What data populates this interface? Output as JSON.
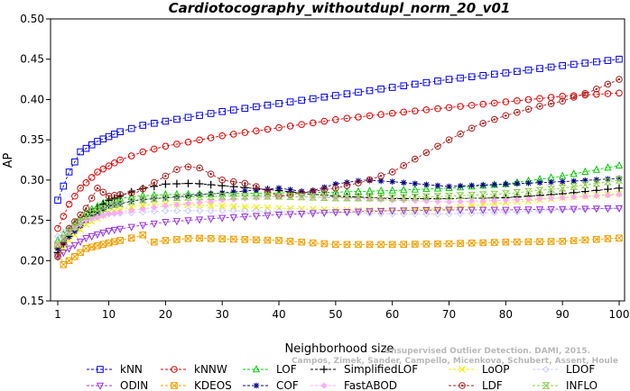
{
  "chart_data": {
    "type": "line",
    "title": "Cardiotocography_withoutdupl_norm_20_v01",
    "xlabel": "Neighborhood size",
    "ylabel": "AP",
    "xlim": [
      0,
      100
    ],
    "ylim": [
      0.15,
      0.5
    ],
    "x_ticks": [
      "1",
      "10",
      "20",
      "30",
      "40",
      "50",
      "60",
      "70",
      "80",
      "90",
      "100"
    ],
    "y_ticks": [
      "0.15",
      "0.20",
      "0.25",
      "0.30",
      "0.35",
      "0.40",
      "0.45",
      "0.50"
    ],
    "grid": false,
    "legend_position": "bottom",
    "watermark": {
      "line1": "Unsupervised Outlier Detection. DAMI, 2015.",
      "line2": "Campos, Zimek, Sander, Campello, Micenkova, Schubert, Assent, Houle"
    },
    "series": [
      {
        "name": "kNN",
        "color": "#0000ee",
        "marker": "square",
        "points": [
          [
            1,
            0.275
          ],
          [
            3,
            0.31
          ],
          [
            5,
            0.335
          ],
          [
            8,
            0.348
          ],
          [
            12,
            0.36
          ],
          [
            16,
            0.368
          ],
          [
            20,
            0.373
          ],
          [
            30,
            0.385
          ],
          [
            40,
            0.395
          ],
          [
            50,
            0.405
          ],
          [
            60,
            0.415
          ],
          [
            70,
            0.425
          ],
          [
            80,
            0.433
          ],
          [
            90,
            0.442
          ],
          [
            100,
            0.45
          ]
        ]
      },
      {
        "name": "kNNW",
        "color": "#e00000",
        "marker": "circle",
        "points": [
          [
            1,
            0.24
          ],
          [
            3,
            0.27
          ],
          [
            5,
            0.29
          ],
          [
            8,
            0.31
          ],
          [
            12,
            0.325
          ],
          [
            16,
            0.335
          ],
          [
            20,
            0.342
          ],
          [
            30,
            0.355
          ],
          [
            40,
            0.365
          ],
          [
            50,
            0.375
          ],
          [
            60,
            0.383
          ],
          [
            70,
            0.39
          ],
          [
            80,
            0.397
          ],
          [
            90,
            0.404
          ],
          [
            100,
            0.408
          ]
        ]
      },
      {
        "name": "LOF",
        "color": "#00cc00",
        "marker": "triangle-up",
        "points": [
          [
            1,
            0.225
          ],
          [
            3,
            0.24
          ],
          [
            6,
            0.26
          ],
          [
            10,
            0.275
          ],
          [
            15,
            0.28
          ],
          [
            20,
            0.282
          ],
          [
            30,
            0.283
          ],
          [
            40,
            0.284
          ],
          [
            50,
            0.285
          ],
          [
            60,
            0.287
          ],
          [
            70,
            0.29
          ],
          [
            80,
            0.295
          ],
          [
            90,
            0.305
          ],
          [
            100,
            0.318
          ]
        ]
      },
      {
        "name": "SimplifiedLOF",
        "color": "#000000",
        "marker": "plus",
        "points": [
          [
            1,
            0.21
          ],
          [
            3,
            0.23
          ],
          [
            6,
            0.255
          ],
          [
            10,
            0.275
          ],
          [
            15,
            0.288
          ],
          [
            20,
            0.295
          ],
          [
            25,
            0.296
          ],
          [
            30,
            0.293
          ],
          [
            35,
            0.29
          ],
          [
            40,
            0.287
          ],
          [
            45,
            0.283
          ],
          [
            50,
            0.28
          ],
          [
            60,
            0.277
          ],
          [
            70,
            0.277
          ],
          [
            80,
            0.278
          ],
          [
            90,
            0.283
          ],
          [
            100,
            0.29
          ]
        ]
      },
      {
        "name": "LoOP",
        "color": "#eeee00",
        "marker": "x",
        "points": [
          [
            1,
            0.205
          ],
          [
            3,
            0.225
          ],
          [
            6,
            0.245
          ],
          [
            10,
            0.26
          ],
          [
            15,
            0.268
          ],
          [
            20,
            0.27
          ],
          [
            30,
            0.268
          ],
          [
            40,
            0.265
          ],
          [
            50,
            0.263
          ],
          [
            60,
            0.262
          ],
          [
            70,
            0.265
          ],
          [
            80,
            0.272
          ],
          [
            90,
            0.278
          ],
          [
            100,
            0.283
          ]
        ]
      },
      {
        "name": "LDOF",
        "color": "#ccccff",
        "marker": "diamond",
        "points": [
          [
            1,
            0.23
          ],
          [
            3,
            0.24
          ],
          [
            6,
            0.25
          ],
          [
            10,
            0.258
          ],
          [
            20,
            0.262
          ],
          [
            30,
            0.262
          ],
          [
            40,
            0.261
          ],
          [
            50,
            0.26
          ],
          [
            60,
            0.258
          ],
          [
            70,
            0.258
          ],
          [
            80,
            0.26
          ],
          [
            90,
            0.263
          ],
          [
            100,
            0.265
          ]
        ]
      },
      {
        "name": "ODIN",
        "color": "#9933dd",
        "marker": "triangle-down",
        "points": [
          [
            1,
            0.205
          ],
          [
            3,
            0.215
          ],
          [
            6,
            0.228
          ],
          [
            10,
            0.237
          ],
          [
            15,
            0.243
          ],
          [
            20,
            0.248
          ],
          [
            30,
            0.253
          ],
          [
            40,
            0.257
          ],
          [
            50,
            0.26
          ],
          [
            60,
            0.262
          ],
          [
            70,
            0.263
          ],
          [
            80,
            0.263
          ],
          [
            90,
            0.264
          ],
          [
            100,
            0.265
          ]
        ]
      },
      {
        "name": "KDEOS",
        "color": "#f0a000",
        "marker": "square-x",
        "points": [
          [
            1,
            0.218
          ],
          [
            2,
            0.195
          ],
          [
            4,
            0.205
          ],
          [
            6,
            0.215
          ],
          [
            10,
            0.222
          ],
          [
            14,
            0.228
          ],
          [
            16,
            0.232
          ],
          [
            17,
            0.222
          ],
          [
            20,
            0.225
          ],
          [
            25,
            0.228
          ],
          [
            30,
            0.227
          ],
          [
            40,
            0.225
          ],
          [
            50,
            0.22
          ],
          [
            60,
            0.22
          ],
          [
            70,
            0.221
          ],
          [
            80,
            0.223
          ],
          [
            90,
            0.224
          ],
          [
            100,
            0.228
          ]
        ]
      },
      {
        "name": "COF",
        "color": "#000080",
        "marker": "star",
        "points": [
          [
            1,
            0.215
          ],
          [
            3,
            0.23
          ],
          [
            6,
            0.25
          ],
          [
            10,
            0.268
          ],
          [
            15,
            0.275
          ],
          [
            20,
            0.278
          ],
          [
            30,
            0.284
          ],
          [
            40,
            0.29
          ],
          [
            45,
            0.285
          ],
          [
            50,
            0.295
          ],
          [
            55,
            0.3
          ],
          [
            60,
            0.298
          ],
          [
            70,
            0.292
          ],
          [
            80,
            0.295
          ],
          [
            90,
            0.298
          ],
          [
            100,
            0.302
          ]
        ]
      },
      {
        "name": "FastABOD",
        "color": "#ffaaff",
        "marker": "diamond-filled",
        "points": [
          [
            1,
            0.22
          ],
          [
            3,
            0.235
          ],
          [
            6,
            0.25
          ],
          [
            10,
            0.258
          ],
          [
            20,
            0.268
          ],
          [
            30,
            0.275
          ],
          [
            40,
            0.28
          ],
          [
            50,
            0.278
          ],
          [
            60,
            0.275
          ],
          [
            70,
            0.273
          ],
          [
            80,
            0.275
          ],
          [
            90,
            0.278
          ],
          [
            100,
            0.282
          ]
        ]
      },
      {
        "name": "LDF",
        "color": "#aa2222",
        "marker": "circle-dot",
        "points": [
          [
            1,
            0.205
          ],
          [
            3,
            0.24
          ],
          [
            6,
            0.265
          ],
          [
            8,
            0.29
          ],
          [
            10,
            0.28
          ],
          [
            15,
            0.285
          ],
          [
            20,
            0.305
          ],
          [
            23,
            0.317
          ],
          [
            26,
            0.315
          ],
          [
            30,
            0.3
          ],
          [
            35,
            0.295
          ],
          [
            40,
            0.28
          ],
          [
            45,
            0.285
          ],
          [
            50,
            0.29
          ],
          [
            55,
            0.298
          ],
          [
            60,
            0.31
          ],
          [
            65,
            0.33
          ],
          [
            70,
            0.35
          ],
          [
            75,
            0.368
          ],
          [
            80,
            0.38
          ],
          [
            85,
            0.39
          ],
          [
            90,
            0.398
          ],
          [
            95,
            0.41
          ],
          [
            100,
            0.425
          ]
        ]
      },
      {
        "name": "INFLO",
        "color": "#88cc44",
        "marker": "hourglass",
        "points": [
          [
            1,
            0.22
          ],
          [
            3,
            0.235
          ],
          [
            6,
            0.255
          ],
          [
            10,
            0.268
          ],
          [
            15,
            0.275
          ],
          [
            20,
            0.278
          ],
          [
            30,
            0.28
          ],
          [
            40,
            0.28
          ],
          [
            50,
            0.278
          ],
          [
            60,
            0.278
          ],
          [
            70,
            0.28
          ],
          [
            80,
            0.283
          ],
          [
            90,
            0.29
          ],
          [
            100,
            0.3
          ]
        ]
      }
    ]
  }
}
